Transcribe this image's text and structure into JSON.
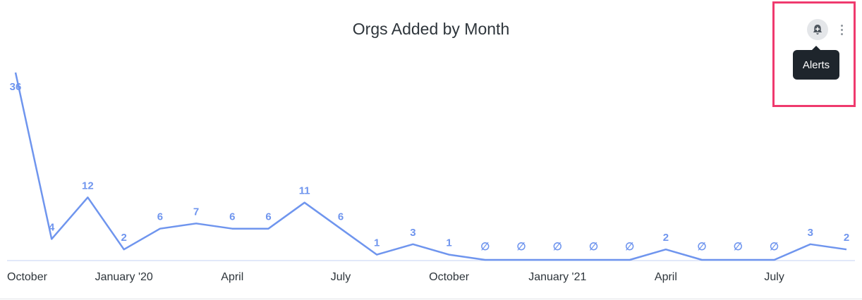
{
  "page": {
    "title": "Orgs Added by Month",
    "tooltip": "Alerts",
    "icons": {
      "alert": "bell-plus-icon",
      "menu": "vertical-ellipsis-icon"
    }
  },
  "chart_data": {
    "type": "line",
    "title": "Orgs Added by Month",
    "xlabel": "",
    "ylabel": "",
    "color": "#6f95ee",
    "null_label": "∅",
    "ylim": [
      0,
      37
    ],
    "grid": false,
    "tick_labels": [
      "October",
      "January '20",
      "April",
      "July",
      "October",
      "January '21",
      "April",
      "July"
    ],
    "x": [
      "2019-10",
      "2019-11",
      "2019-12",
      "2020-01",
      "2020-02",
      "2020-03",
      "2020-04",
      "2020-05",
      "2020-06",
      "2020-07",
      "2020-08",
      "2020-09",
      "2020-10",
      "2020-11",
      "2020-12",
      "2021-01",
      "2021-02",
      "2021-03",
      "2021-04",
      "2021-05",
      "2021-06",
      "2021-07",
      "2021-08",
      "2021-09"
    ],
    "values": [
      36,
      4,
      12,
      2,
      6,
      7,
      6,
      6,
      11,
      6,
      1,
      3,
      1,
      null,
      null,
      null,
      null,
      null,
      2,
      null,
      null,
      null,
      3,
      2
    ]
  }
}
